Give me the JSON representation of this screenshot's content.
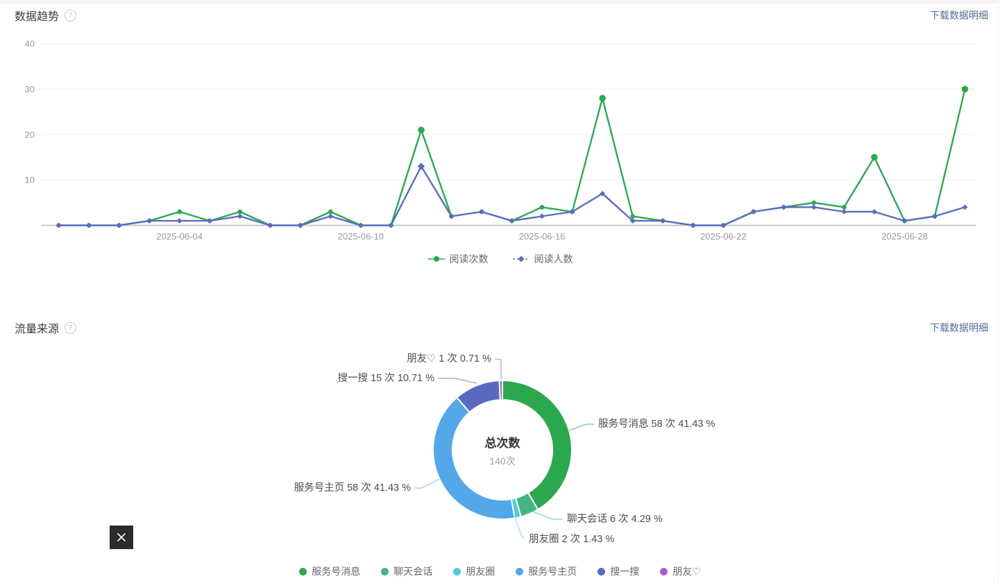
{
  "sections": {
    "trend": {
      "title": "数据趋势",
      "download_link": "下载数据明细"
    },
    "source": {
      "title": "流量来源",
      "download_link": "下载数据明细"
    }
  },
  "icons": {
    "help": "?",
    "close": "close-x"
  },
  "colors": {
    "link": "#576b95",
    "grid": "#efefef",
    "baseline": "#c9c9c9",
    "axis_label": "#999999",
    "legend_text": "#666666",
    "callout_text": "#4d4d4d",
    "close_button_bg": "#2b2b2b"
  },
  "chart_data": [
    {
      "type": "line",
      "title": "数据趋势",
      "x": [
        "2025-05-31",
        "2025-06-01",
        "2025-06-02",
        "2025-06-03",
        "2025-06-04",
        "2025-06-05",
        "2025-06-06",
        "2025-06-07",
        "2025-06-08",
        "2025-06-09",
        "2025-06-10",
        "2025-06-11",
        "2025-06-12",
        "2025-06-13",
        "2025-06-14",
        "2025-06-15",
        "2025-06-16",
        "2025-06-17",
        "2025-06-18",
        "2025-06-19",
        "2025-06-20",
        "2025-06-21",
        "2025-06-22",
        "2025-06-23",
        "2025-06-24",
        "2025-06-25",
        "2025-06-26",
        "2025-06-27",
        "2025-06-28",
        "2025-06-29",
        "2025-06-30"
      ],
      "x_tick_labels": [
        "2025-06-04",
        "2025-06-10",
        "2025-06-16",
        "2025-06-22",
        "2025-06-28"
      ],
      "ylim": [
        0,
        40
      ],
      "yticks": [
        10,
        20,
        30,
        40
      ],
      "grid": true,
      "legend_position": "bottom",
      "series": [
        {
          "name": "阅读次数",
          "color": "#2ba84e",
          "marker": "circle",
          "values": [
            0,
            0,
            0,
            1,
            3,
            1,
            3,
            0,
            0,
            3,
            0,
            0,
            21,
            2,
            3,
            1,
            4,
            3,
            28,
            2,
            1,
            0,
            0,
            3,
            4,
            5,
            4,
            15,
            1,
            2,
            30
          ]
        },
        {
          "name": "阅读人数",
          "color": "#5b6cc0",
          "marker": "diamond",
          "values": [
            0,
            0,
            0,
            1,
            1,
            1,
            2,
            0,
            0,
            2,
            0,
            0,
            13,
            2,
            3,
            1,
            2,
            3,
            7,
            1,
            1,
            0,
            0,
            3,
            4,
            4,
            3,
            3,
            1,
            2,
            4
          ]
        }
      ]
    },
    {
      "type": "pie",
      "donut": true,
      "title": "流量来源",
      "center": {
        "label": "总次数",
        "value": "140次"
      },
      "label_format": "{name} {count} 次 {pct} %",
      "legend_position": "bottom",
      "items": [
        {
          "name": "服务号消息",
          "count": 58,
          "pct": "41.43",
          "color": "#2ba84e"
        },
        {
          "name": "聊天会话",
          "count": 6,
          "pct": "4.29",
          "color": "#43b583"
        },
        {
          "name": "朋友圈",
          "count": 2,
          "pct": "1.43",
          "color": "#52c8e0"
        },
        {
          "name": "服务号主页",
          "count": 58,
          "pct": "41.43",
          "color": "#54a7e8"
        },
        {
          "name": "搜一搜",
          "count": 15,
          "pct": "10.71",
          "color": "#5a6bbf"
        },
        {
          "name": "朋友♡",
          "count": 1,
          "pct": "0.71",
          "color": "#9c62c5"
        }
      ]
    }
  ]
}
